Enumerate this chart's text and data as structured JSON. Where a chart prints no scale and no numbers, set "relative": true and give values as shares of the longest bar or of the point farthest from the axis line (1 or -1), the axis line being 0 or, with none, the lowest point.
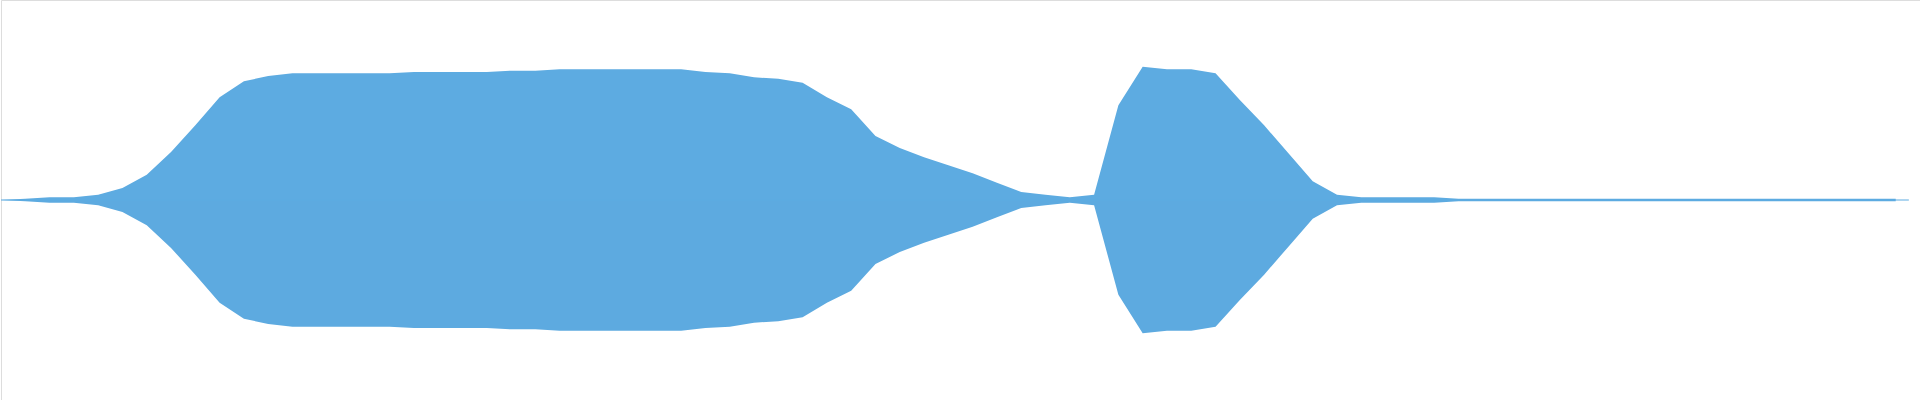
{
  "chart_data": {
    "type": "area",
    "relative": true,
    "ref_lines": [
      {
        "axis": "y",
        "value": 0,
        "color": "#5dabe1"
      }
    ],
    "categories": [
      null,
      null,
      null,
      null,
      null,
      null,
      null,
      null,
      null,
      null,
      null,
      null,
      null,
      null,
      null,
      null,
      null,
      null,
      null,
      null,
      null,
      null,
      null,
      null,
      null,
      null,
      null,
      null,
      null,
      null,
      null,
      null,
      null,
      null,
      null,
      null,
      null,
      null,
      null,
      null,
      null,
      null,
      null,
      null,
      null,
      null,
      null,
      null,
      null,
      null,
      null,
      null,
      null,
      null,
      null,
      null,
      null,
      null,
      null,
      null,
      null,
      null,
      null,
      null,
      null,
      null,
      null,
      null,
      null,
      null,
      null,
      null,
      null,
      null,
      null,
      null,
      null,
      null,
      null,
      null
    ],
    "series": [
      {
        "color": "#5dabe1",
        "values": [
          0.0,
          0.01,
          0.02,
          0.02,
          0.04,
          0.09,
          0.19,
          0.36,
          0.56,
          0.77,
          0.89,
          0.93,
          0.95,
          0.95,
          0.95,
          0.95,
          0.95,
          0.96,
          0.96,
          0.96,
          0.96,
          0.97,
          0.97,
          0.98,
          0.98,
          0.98,
          0.98,
          0.98,
          0.98,
          0.96,
          0.95,
          0.92,
          0.91,
          0.88,
          0.77,
          0.68,
          0.48,
          0.39,
          0.32,
          0.26,
          0.2,
          0.13,
          0.06,
          0.04,
          0.02,
          0.04,
          0.71,
          1.0,
          0.98,
          0.98,
          0.95,
          0.75,
          0.56,
          0.35,
          0.14,
          0.04,
          0.02,
          0.02,
          0.02,
          0.02,
          0.01,
          0.01,
          0.01,
          0.01,
          0.01,
          0.01,
          0.01,
          0.01,
          0.01,
          0.01,
          0.01,
          0.01,
          0.01,
          0.01,
          0.01,
          0.01,
          0.01,
          0.01,
          0.01,
          null
        ]
      },
      {
        "color": "#5daae0",
        "values": [
          0.0,
          -0.01,
          -0.02,
          -0.02,
          -0.04,
          -0.09,
          -0.19,
          -0.36,
          -0.56,
          -0.77,
          -0.89,
          -0.93,
          -0.95,
          -0.95,
          -0.95,
          -0.95,
          -0.95,
          -0.96,
          -0.96,
          -0.96,
          -0.96,
          -0.97,
          -0.97,
          -0.98,
          -0.98,
          -0.98,
          -0.98,
          -0.98,
          -0.98,
          -0.96,
          -0.95,
          -0.92,
          -0.91,
          -0.88,
          -0.77,
          -0.68,
          -0.48,
          -0.39,
          -0.32,
          -0.26,
          -0.2,
          -0.13,
          -0.06,
          -0.04,
          -0.02,
          -0.04,
          -0.71,
          -1.0,
          -0.98,
          -0.98,
          -0.95,
          -0.75,
          -0.56,
          -0.35,
          -0.14,
          -0.04,
          -0.02,
          -0.02,
          -0.02,
          -0.02,
          -0.01,
          -0.01,
          -0.01,
          -0.01,
          -0.01,
          -0.01,
          -0.01,
          -0.01,
          -0.01,
          -0.01,
          -0.01,
          -0.01,
          -0.01,
          -0.01,
          -0.01,
          -0.01,
          -0.01,
          -0.01,
          -0.01,
          null
        ]
      }
    ]
  }
}
